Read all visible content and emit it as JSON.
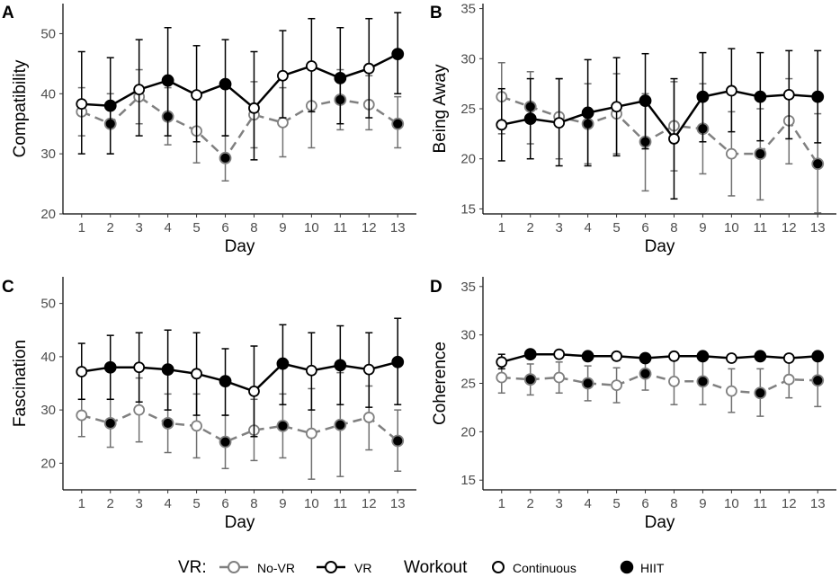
{
  "panels": [
    {
      "letter": "A",
      "ylabel": "Compatibility",
      "xlabel": "Day",
      "ylim": [
        20,
        55
      ],
      "yticks": [
        20,
        30,
        40,
        50
      ],
      "days": [
        "1",
        "2",
        "3",
        "4",
        "5",
        "6",
        "8",
        "9",
        "10",
        "11",
        "12",
        "13"
      ],
      "hiit": [
        false,
        true,
        false,
        true,
        false,
        true,
        false,
        false,
        false,
        true,
        false,
        true
      ],
      "series": [
        {
          "name": "No-VR",
          "mean": [
            37,
            35,
            39.5,
            36.2,
            33.8,
            29.3,
            36.5,
            35.2,
            38,
            39,
            38.2,
            35
          ],
          "lo": [
            33,
            30,
            35,
            31.5,
            28.5,
            25.5,
            31,
            29.5,
            31,
            34,
            34,
            31
          ],
          "hi": [
            41,
            40,
            44,
            41,
            39,
            33,
            42,
            41,
            45,
            44,
            43,
            39.5
          ]
        },
        {
          "name": "VR",
          "mean": [
            38.3,
            38,
            40.7,
            42.2,
            39.8,
            41.6,
            37.6,
            43,
            44.6,
            42.6,
            44.2,
            46.6
          ],
          "lo": [
            30,
            30,
            33,
            33,
            32,
            33,
            29,
            36,
            37,
            35,
            36,
            40
          ],
          "hi": [
            47,
            46,
            49,
            51,
            48,
            49,
            47,
            50.5,
            52.5,
            51,
            52.5,
            53.5
          ]
        }
      ]
    },
    {
      "letter": "B",
      "ylabel": "Being Away",
      "xlabel": "Day",
      "ylim": [
        14.5,
        35.5
      ],
      "yticks": [
        15,
        20,
        25,
        30,
        35
      ],
      "days": [
        "1",
        "2",
        "3",
        "4",
        "5",
        "6",
        "8",
        "9",
        "10",
        "11",
        "12",
        "13"
      ],
      "hiit": [
        false,
        true,
        false,
        true,
        false,
        true,
        false,
        true,
        false,
        true,
        false,
        true
      ],
      "series": [
        {
          "name": "No-VR",
          "mean": [
            26.2,
            25.2,
            24.2,
            23.5,
            24.5,
            21.7,
            23.3,
            23,
            20.5,
            20.5,
            23.8,
            19.5
          ],
          "lo": [
            22.5,
            21.5,
            20,
            19.5,
            20.5,
            16.8,
            18.8,
            18.5,
            16.3,
            15.9,
            19.5,
            14.6
          ],
          "hi": [
            29.6,
            28.7,
            28,
            27.5,
            28.5,
            26.5,
            27.7,
            27.5,
            24.7,
            25,
            28,
            24.5
          ]
        },
        {
          "name": "VR",
          "mean": [
            23.4,
            24,
            23.6,
            24.6,
            25.2,
            25.8,
            22,
            26.2,
            26.8,
            26.2,
            26.4,
            26.2
          ],
          "lo": [
            19.8,
            20,
            19.3,
            19.3,
            20.3,
            21,
            16,
            21.7,
            22.7,
            21.8,
            22,
            21.6
          ],
          "hi": [
            27,
            28,
            28,
            29.9,
            30.1,
            30.5,
            28,
            30.6,
            31,
            30.6,
            30.8,
            30.8
          ]
        }
      ]
    },
    {
      "letter": "C",
      "ylabel": "Fascination",
      "xlabel": "Day",
      "ylim": [
        15,
        55
      ],
      "yticks": [
        20,
        30,
        40,
        50
      ],
      "days": [
        "1",
        "2",
        "3",
        "4",
        "5",
        "6",
        "8",
        "9",
        "10",
        "11",
        "12",
        "13"
      ],
      "hiit": [
        false,
        true,
        false,
        true,
        false,
        true,
        false,
        true,
        false,
        true,
        false,
        true
      ],
      "series": [
        {
          "name": "No-VR",
          "mean": [
            29,
            27.5,
            30,
            27.5,
            27,
            24,
            26.2,
            27,
            25.6,
            27.2,
            28.6,
            24.2
          ],
          "lo": [
            25,
            23,
            24,
            22,
            21,
            19,
            20.5,
            21,
            17,
            17.5,
            22.5,
            18.5
          ],
          "hi": [
            32,
            32,
            36,
            33,
            33,
            29,
            32,
            33,
            34,
            37,
            34.5,
            30
          ]
        },
        {
          "name": "VR",
          "mean": [
            37.2,
            38,
            38,
            37.6,
            36.8,
            35.4,
            33.5,
            38.7,
            37.4,
            38.4,
            37.6,
            39
          ],
          "lo": [
            32,
            32,
            31.5,
            30,
            29,
            29,
            25,
            31,
            30,
            31,
            30.5,
            31
          ],
          "hi": [
            42.5,
            44,
            44.5,
            45,
            44.5,
            41.5,
            42,
            46,
            44.5,
            45.8,
            44.5,
            47.2
          ]
        }
      ]
    },
    {
      "letter": "D",
      "ylabel": "Coherence",
      "xlabel": "Day",
      "ylim": [
        14,
        36
      ],
      "yticks": [
        15,
        20,
        25,
        30,
        35
      ],
      "days": [
        "1",
        "2",
        "3",
        "4",
        "5",
        "6",
        "8",
        "9",
        "10",
        "11",
        "12",
        "13"
      ],
      "hiit": [
        false,
        true,
        false,
        true,
        false,
        true,
        false,
        true,
        false,
        true,
        false,
        true
      ],
      "series": [
        {
          "name": "No-VR",
          "mean": [
            25.6,
            25.4,
            25.6,
            25,
            24.8,
            26,
            25.2,
            25.2,
            24.2,
            24,
            25.4,
            25.3
          ],
          "lo": [
            24,
            23.8,
            24,
            23.2,
            23,
            24.3,
            22.8,
            22.8,
            22,
            21.6,
            23.5,
            22.6
          ],
          "hi": [
            27.2,
            27,
            27.2,
            26.8,
            26.6,
            27.8,
            27.6,
            27.6,
            26.5,
            26.5,
            27.3,
            27.8
          ]
        },
        {
          "name": "VR",
          "mean": [
            27.2,
            28,
            28,
            27.8,
            27.8,
            27.6,
            27.8,
            27.8,
            27.6,
            27.8,
            27.6,
            27.8
          ],
          "lo": [
            26.5,
            27.7,
            27.7,
            27.5,
            27.5,
            27.3,
            27.5,
            27.5,
            27.3,
            27.5,
            27.3,
            27.5
          ],
          "hi": [
            28,
            28.3,
            28.3,
            28.1,
            28.1,
            27.9,
            28.1,
            28.1,
            27.9,
            28.1,
            27.9,
            28.1
          ]
        }
      ]
    }
  ],
  "legend": {
    "vr_title": "VR:",
    "vr_items": [
      "No-VR",
      "VR"
    ],
    "workout_title": "Workout",
    "workout_items": [
      "Continuous",
      "HIIT"
    ]
  },
  "colors": {
    "novr": "#808080",
    "vr": "#000000",
    "continuous_fill": "#ffffff",
    "hiit_fill": "#000000",
    "errorbar_novr": "#707070",
    "errorbar_vr": "#000000"
  }
}
